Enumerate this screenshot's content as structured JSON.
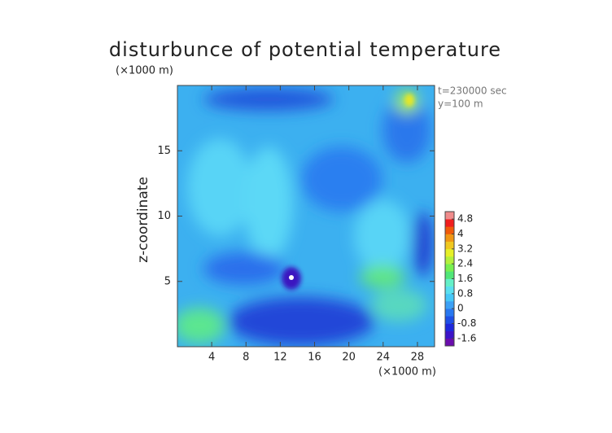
{
  "chart_data": {
    "type": "contour",
    "title": "disturbunce of potential temperature",
    "y_unit": "(×1000 m)",
    "x_unit": "(×1000 m)",
    "ylabel": "z-coordinate",
    "annotations": [
      "t=230000 sec",
      "y=100 m"
    ],
    "xlim": [
      0,
      30
    ],
    "xticks": [
      4,
      8,
      12,
      16,
      20,
      24,
      28
    ],
    "ylim": [
      0,
      20
    ],
    "yticks": [
      5,
      10,
      15
    ],
    "colorbar": {
      "clim": [
        -2,
        5.2
      ],
      "ticks": [
        -1.6,
        -0.8,
        0,
        0.8,
        1.6,
        2.4,
        3.2,
        4,
        4.8
      ],
      "colors": [
        "#6a0dad",
        "#3c14c8",
        "#1e28dc",
        "#1e50e6",
        "#2878f0",
        "#3ca0f5",
        "#46c8f8",
        "#5ae0f0",
        "#64f0c8",
        "#50e678",
        "#78f050",
        "#b4f03c",
        "#e6f028",
        "#f0c820",
        "#f09614",
        "#f05a0a",
        "#f01e1e",
        "#f08c8c"
      ]
    }
  }
}
